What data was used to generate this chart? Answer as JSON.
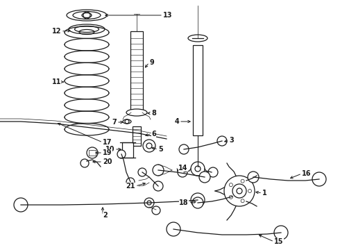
{
  "background_color": "#ffffff",
  "figure_width": 4.9,
  "figure_height": 3.6,
  "dpi": 100,
  "line_color": "#1a1a1a",
  "arrow_color": "#1a1a1a",
  "text_color": "#1a1a1a",
  "font_size": 7.0,
  "lw_thin": 0.5,
  "lw_med": 0.9,
  "lw_thick": 1.4
}
